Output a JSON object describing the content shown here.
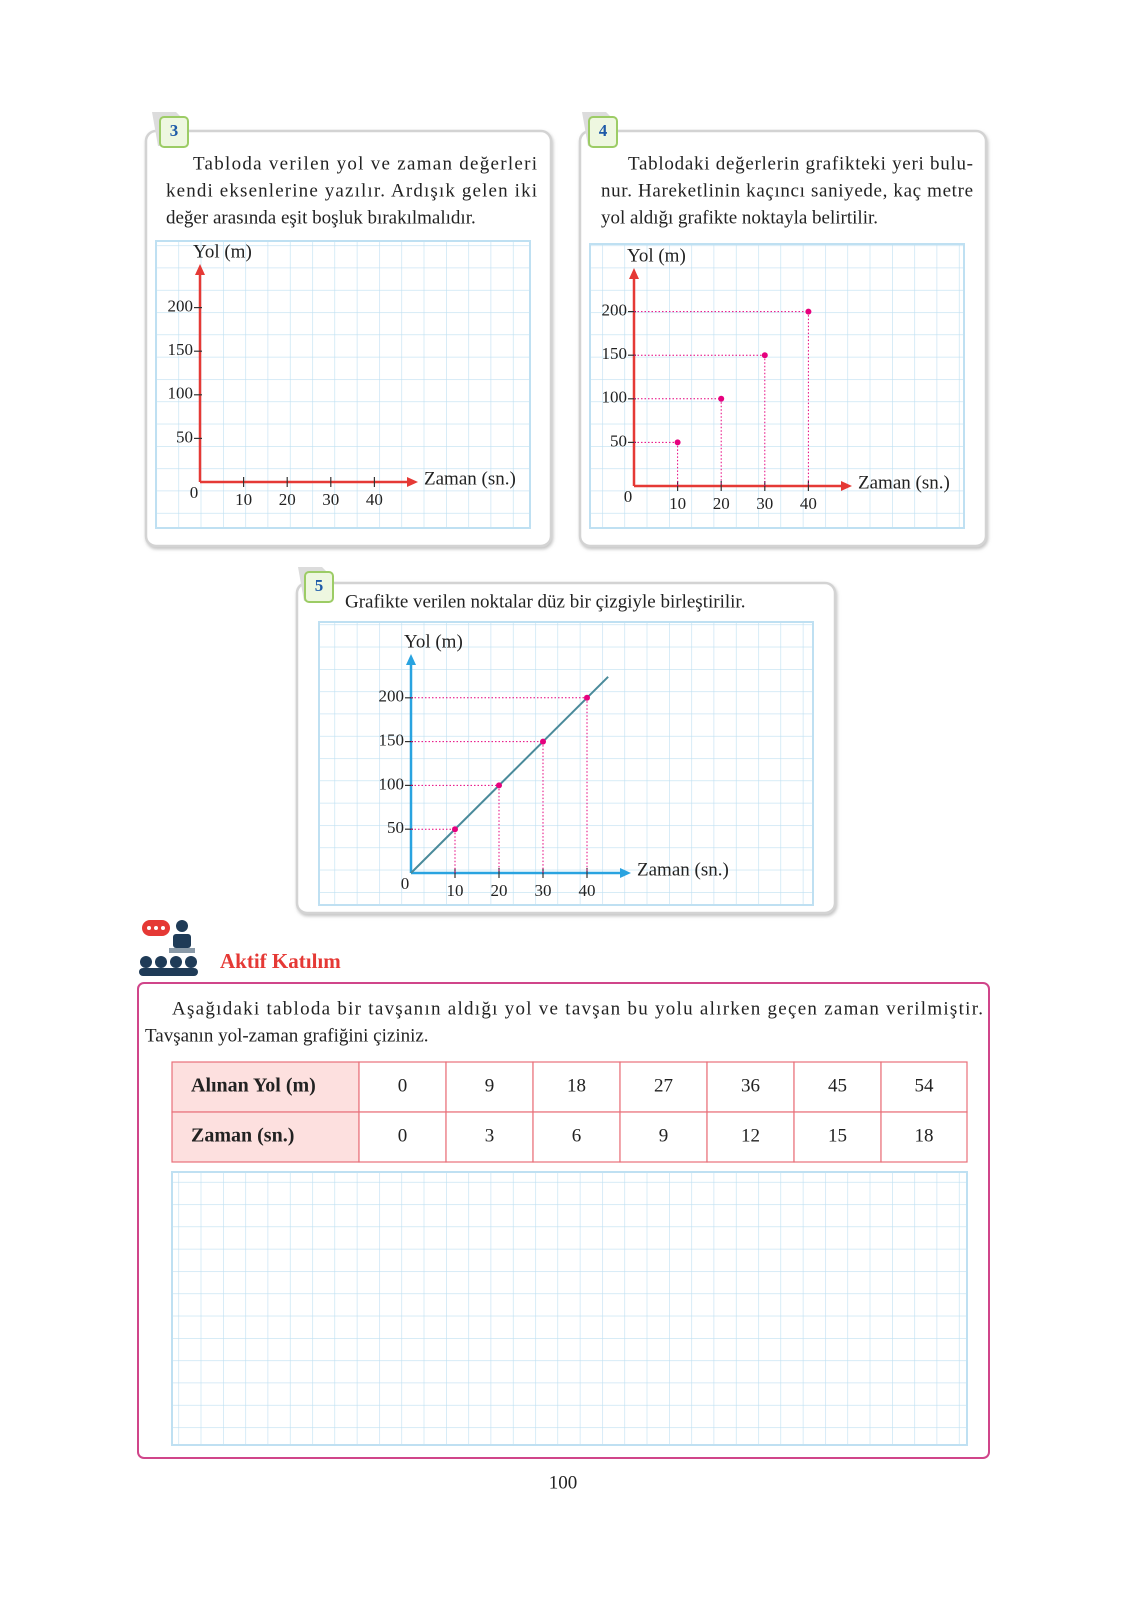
{
  "steps": [
    {
      "number": "3",
      "lines": [
        "Tabloda verilen yol ve zaman değerleri",
        "kendi eksenlerine yazılır. Ardışık gelen iki",
        "değer arasında eşit boşluk bırakılmalıdır."
      ],
      "chart": {
        "type": "axes",
        "y_label": "Yol (m)",
        "x_label": "Zaman (sn.)",
        "xlim": [
          0,
          50
        ],
        "ylim": [
          0,
          250
        ],
        "xticks": [
          10,
          20,
          30,
          40
        ],
        "yticks": [
          50,
          100,
          150,
          200
        ],
        "axis_color": "#e53935"
      }
    },
    {
      "number": "4",
      "lines": [
        "Tablodaki değerlerin grafikteki yeri bulu-",
        "nur. Hareketlinin kaçıncı saniyede, kaç metre",
        "yol aldığı grafikte noktayla belirtilir."
      ],
      "chart": {
        "type": "points",
        "y_label": "Yol (m)",
        "x_label": "Zaman (sn.)",
        "xlim": [
          0,
          50
        ],
        "ylim": [
          0,
          250
        ],
        "xticks": [
          10,
          20,
          30,
          40
        ],
        "yticks": [
          50,
          100,
          150,
          200
        ],
        "axis_color": "#e53935",
        "x": [
          10,
          20,
          30,
          40
        ],
        "values": [
          50,
          100,
          150,
          200
        ],
        "color": "#e6007e"
      }
    },
    {
      "number": "5",
      "lines": [
        "Grafikte verilen noktalar düz bir çizgiyle birleştirilir."
      ],
      "chart": {
        "type": "line",
        "y_label": "Yol (m)",
        "x_label": "Zaman (sn.)",
        "xlim": [
          0,
          50
        ],
        "ylim": [
          0,
          250
        ],
        "xticks": [
          10,
          20,
          30,
          40
        ],
        "yticks": [
          50,
          100,
          150,
          200
        ],
        "axis_color": "#29a3e0",
        "x": [
          10,
          20,
          30,
          40
        ],
        "values": [
          50,
          100,
          150,
          200
        ],
        "color": "#e6007e",
        "line_color": "#4a8a9a"
      }
    }
  ],
  "activity": {
    "title": "Aktif Katılım",
    "lines": [
      "Aşağıdaki tabloda bir tavşanın aldığı yol ve tavşan bu yolu alırken geçen zaman verilmiştir.",
      "Tavşanın yol-zaman grafiğini çiziniz."
    ],
    "table": {
      "rows": [
        [
          "Alınan Yol (m)",
          0,
          9,
          18,
          27,
          36,
          45,
          54
        ],
        [
          "Zaman (sn.)",
          0,
          3,
          6,
          9,
          12,
          15,
          18
        ]
      ]
    }
  },
  "page_number": 100
}
